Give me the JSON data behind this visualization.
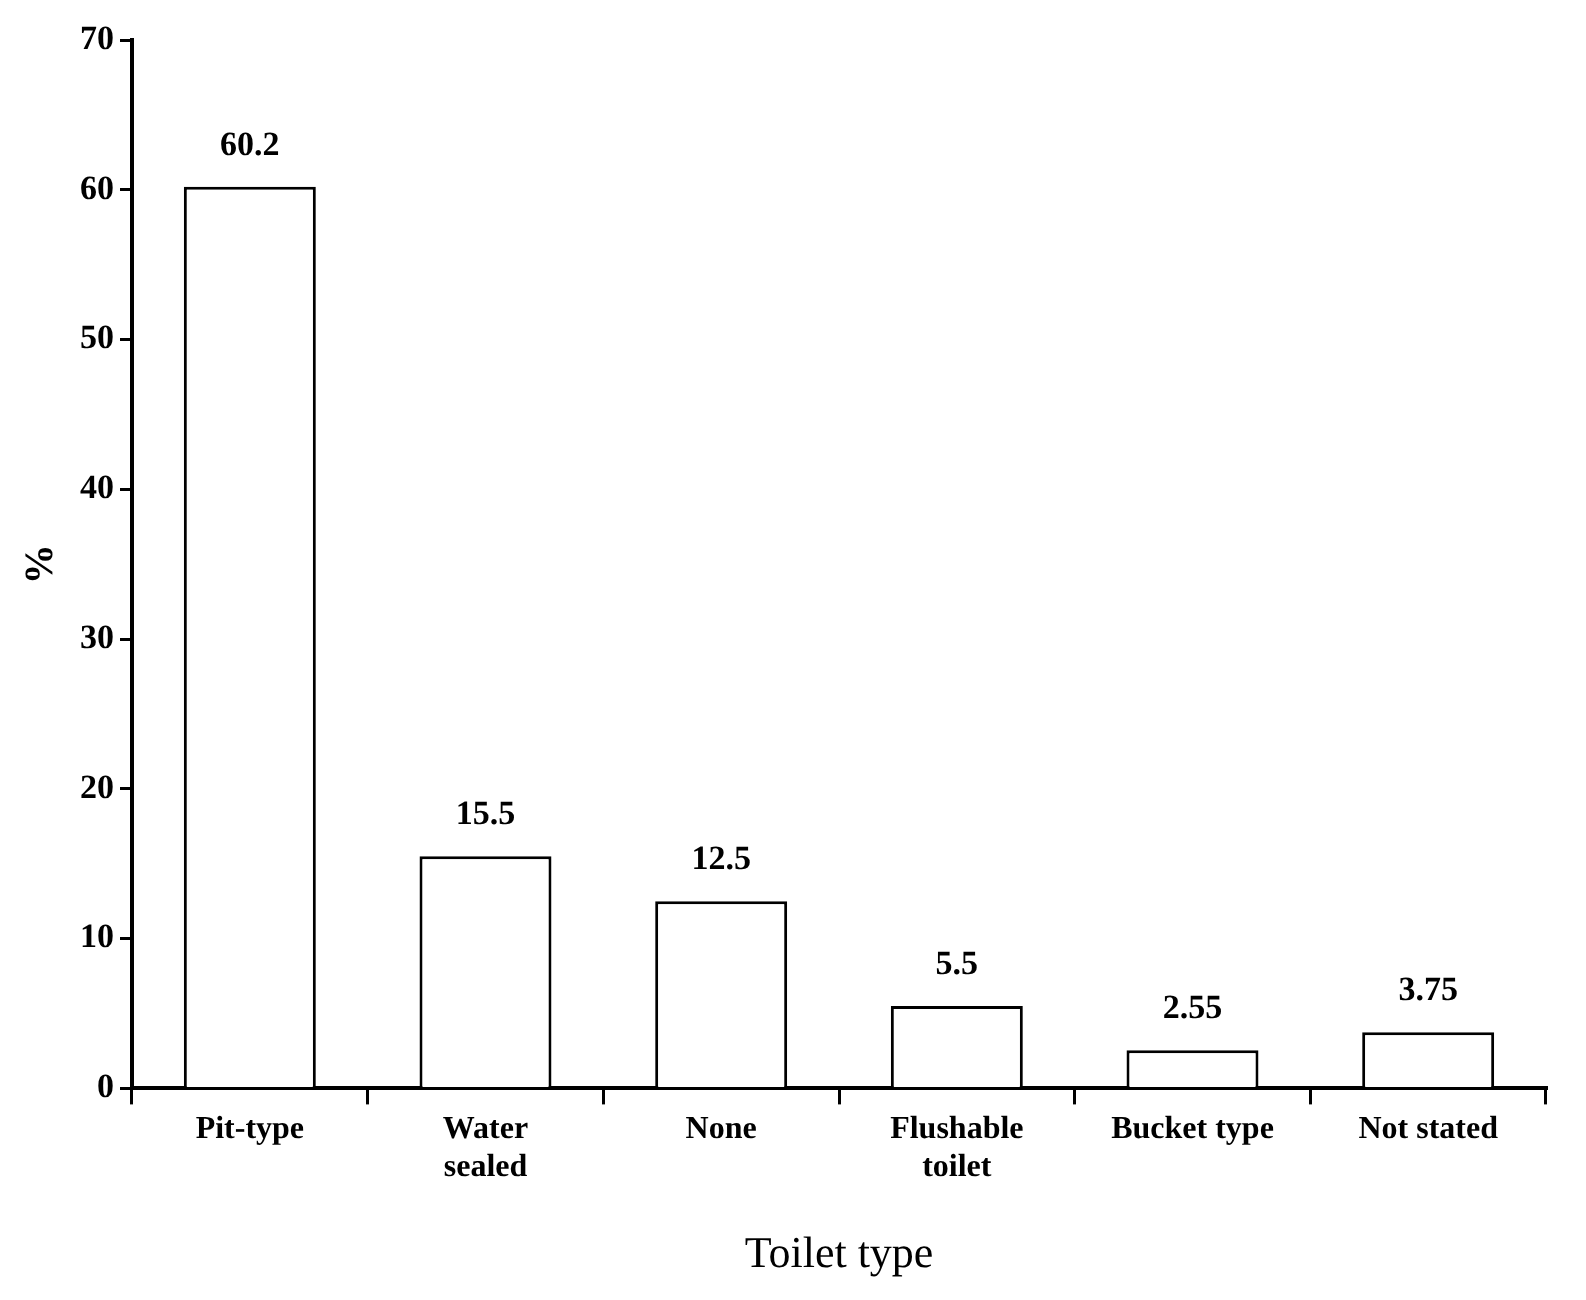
{
  "chart_data": {
    "type": "bar",
    "xlabel": "Toilet type",
    "ylabel": "%",
    "categories": [
      "Pit-type",
      "Water sealed",
      "None",
      "Flushable toilet",
      "Bucket type",
      "Not stated"
    ],
    "values": [
      60.2,
      15.5,
      12.5,
      5.5,
      2.55,
      3.75
    ],
    "color": "#ffffff",
    "ylim": [
      0,
      70
    ],
    "yticks": [
      0,
      10,
      20,
      30,
      40,
      50,
      60,
      70
    ],
    "grid": false,
    "legend": false,
    "data_labels": true
  }
}
